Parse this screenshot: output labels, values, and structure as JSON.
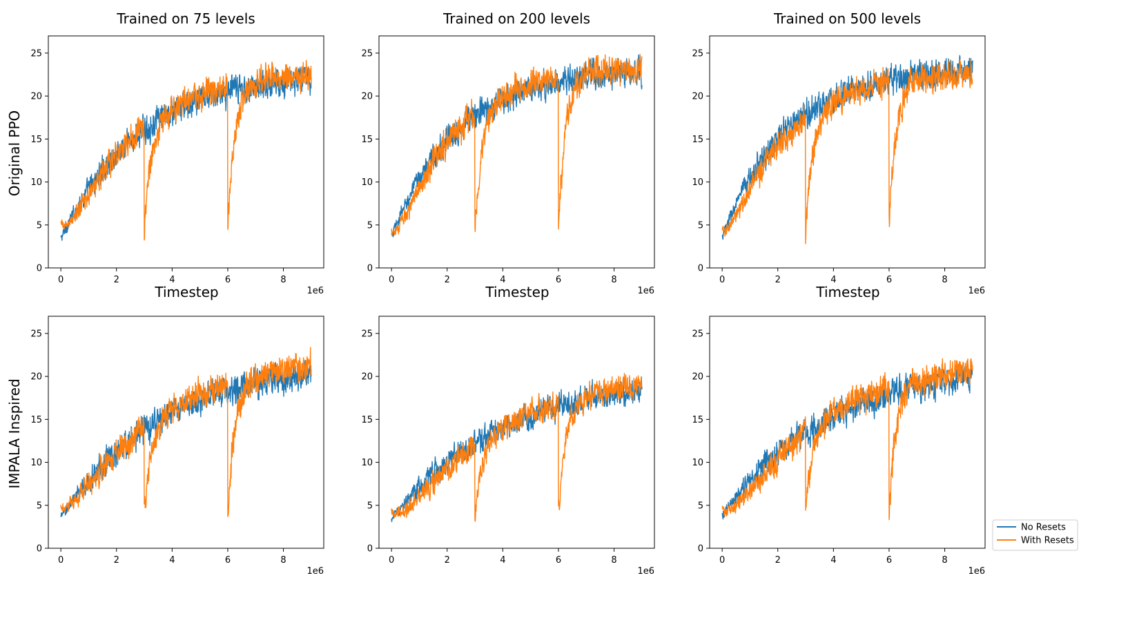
{
  "colors": {
    "no_resets": "#1f77b4",
    "with_resets": "#ff7f0e"
  },
  "legend": {
    "placement": "lower-right outside",
    "entries": [
      "No Resets",
      "With Resets"
    ]
  },
  "chart_data": [
    {
      "type": "line",
      "title": "Trained on 75 levels",
      "ylabel": "Original PPO",
      "xlabel": "Timestep",
      "offset_text": "1e6",
      "xlim": [
        -0.45,
        9.45
      ],
      "ylim": [
        0,
        27
      ],
      "xticks": [
        0,
        2,
        4,
        6,
        8
      ],
      "yticks": [
        0,
        5,
        10,
        15,
        20,
        25
      ],
      "x_range": [
        0,
        9
      ],
      "x_unit": 1000000,
      "reset_points": [
        3,
        6
      ],
      "series": [
        {
          "name": "No Resets",
          "start": 4.6,
          "plateau": 23.0,
          "rate": 0.65,
          "noise": 1.0
        },
        {
          "name": "With Resets",
          "start": 5.0,
          "plateau": 23.6,
          "rate": 0.65,
          "noise": 1.0,
          "dips": [
            {
              "x": 3,
              "y": 4.9
            },
            {
              "x": 6,
              "y": 4.9
            }
          ]
        }
      ]
    },
    {
      "type": "line",
      "title": "Trained on 200 levels",
      "ylabel": "",
      "xlabel": "Timestep",
      "offset_text": "1e6",
      "xlim": [
        -0.45,
        9.45
      ],
      "ylim": [
        0,
        27
      ],
      "xticks": [
        0,
        2,
        4,
        6,
        8
      ],
      "yticks": [
        0,
        5,
        10,
        15,
        20,
        25
      ],
      "x_range": [
        0,
        9
      ],
      "x_unit": 1000000,
      "reset_points": [
        3,
        6
      ],
      "series": [
        {
          "name": "No Resets",
          "start": 4.8,
          "plateau": 23.3,
          "rate": 0.8,
          "noise": 1.0
        },
        {
          "name": "With Resets",
          "start": 4.4,
          "plateau": 24.0,
          "rate": 0.8,
          "noise": 1.0,
          "dips": [
            {
              "x": 3,
              "y": 4.2
            },
            {
              "x": 6,
              "y": 4.2
            }
          ]
        }
      ]
    },
    {
      "type": "line",
      "title": "Trained on 500 levels",
      "ylabel": "",
      "xlabel": "Timestep",
      "offset_text": "1e6",
      "xlim": [
        -0.45,
        9.45
      ],
      "ylim": [
        0,
        27
      ],
      "xticks": [
        0,
        2,
        4,
        6,
        8
      ],
      "yticks": [
        0,
        5,
        10,
        15,
        20,
        25
      ],
      "x_range": [
        0,
        9
      ],
      "x_unit": 1000000,
      "reset_points": [
        3,
        6
      ],
      "series": [
        {
          "name": "No Resets",
          "start": 4.8,
          "plateau": 23.5,
          "rate": 0.8,
          "noise": 1.0
        },
        {
          "name": "With Resets",
          "start": 4.5,
          "plateau": 23.2,
          "rate": 0.8,
          "noise": 1.0,
          "dips": [
            {
              "x": 3,
              "y": 4.0
            },
            {
              "x": 6,
              "y": 4.8
            }
          ]
        }
      ]
    },
    {
      "type": "line",
      "title": "",
      "ylabel": "IMPALA Inspired",
      "xlabel": "",
      "offset_text": "1e6",
      "xlim": [
        -0.45,
        9.45
      ],
      "ylim": [
        0,
        27
      ],
      "xticks": [
        0,
        2,
        4,
        6,
        8
      ],
      "yticks": [
        0,
        5,
        10,
        15,
        20,
        25
      ],
      "x_range": [
        0,
        9
      ],
      "x_unit": 1000000,
      "reset_points": [
        3,
        6
      ],
      "series": [
        {
          "name": "No Resets",
          "start": 4.7,
          "plateau": 22.0,
          "rate": 0.5,
          "noise": 1.0
        },
        {
          "name": "With Resets",
          "start": 5.0,
          "plateau": 23.0,
          "rate": 0.5,
          "noise": 1.0,
          "dips": [
            {
              "x": 3,
              "y": 4.2
            },
            {
              "x": 6,
              "y": 3.9
            }
          ]
        }
      ]
    },
    {
      "type": "line",
      "title": "",
      "ylabel": "",
      "xlabel": "",
      "offset_text": "1e6",
      "xlim": [
        -0.45,
        9.45
      ],
      "ylim": [
        0,
        27
      ],
      "xticks": [
        0,
        2,
        4,
        6,
        8
      ],
      "yticks": [
        0,
        5,
        10,
        15,
        20,
        25
      ],
      "x_range": [
        0,
        9
      ],
      "x_unit": 1000000,
      "reset_points": [
        3,
        6
      ],
      "series": [
        {
          "name": "No Resets",
          "start": 4.6,
          "plateau": 20.5,
          "rate": 0.45,
          "noise": 0.9
        },
        {
          "name": "With Resets",
          "start": 4.2,
          "plateau": 21.0,
          "rate": 0.45,
          "noise": 0.9,
          "dips": [
            {
              "x": 3,
              "y": 3.9
            },
            {
              "x": 6,
              "y": 4.2
            }
          ]
        }
      ]
    },
    {
      "type": "line",
      "title": "",
      "ylabel": "",
      "xlabel": "",
      "offset_text": "1e6",
      "xlim": [
        -0.45,
        9.45
      ],
      "ylim": [
        0,
        27
      ],
      "xticks": [
        0,
        2,
        4,
        6,
        8
      ],
      "yticks": [
        0,
        5,
        10,
        15,
        20,
        25
      ],
      "x_range": [
        0,
        9
      ],
      "x_unit": 1000000,
      "reset_points": [
        3,
        6
      ],
      "series": [
        {
          "name": "No Resets",
          "start": 4.8,
          "plateau": 21.5,
          "rate": 0.5,
          "noise": 1.0
        },
        {
          "name": "With Resets",
          "start": 4.4,
          "plateau": 22.5,
          "rate": 0.5,
          "noise": 1.0,
          "dips": [
            {
              "x": 3,
              "y": 4.4
            },
            {
              "x": 6,
              "y": 4.2
            }
          ]
        }
      ]
    }
  ]
}
